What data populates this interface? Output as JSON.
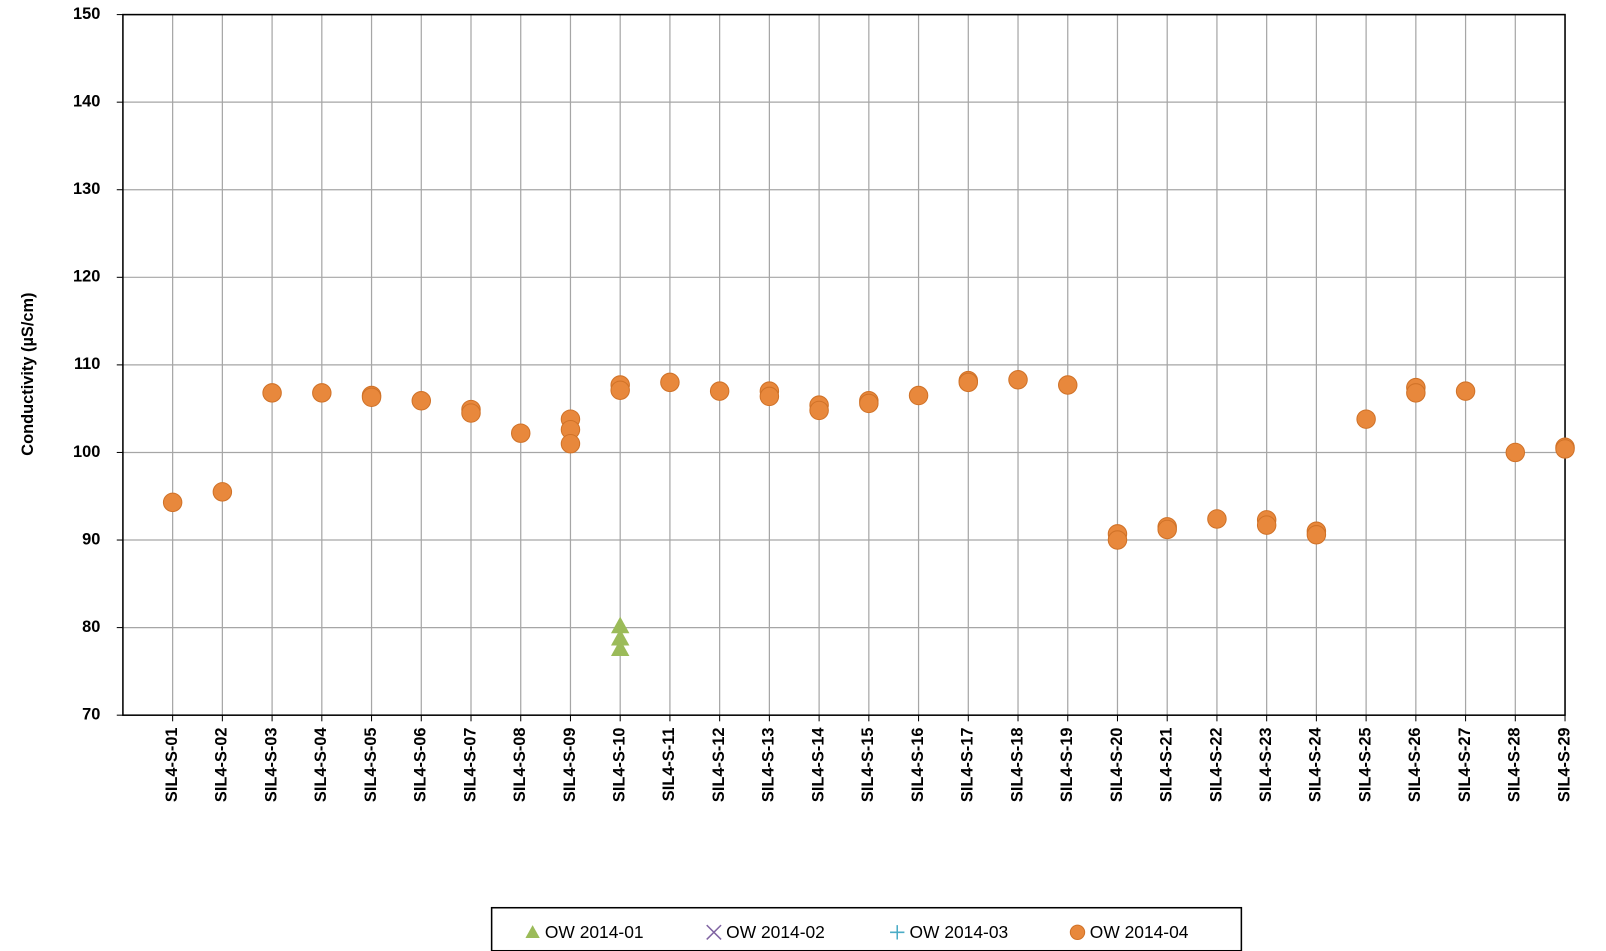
{
  "chart_data": {
    "type": "scatter",
    "y_label": "Conductivity (µS/cm)",
    "xlim": [
      0,
      29
    ],
    "ylim": [
      70,
      150
    ],
    "yticks": [
      70,
      80,
      90,
      100,
      110,
      120,
      130,
      140,
      150
    ],
    "xticks": [
      {
        "value": 1,
        "label": "SIL4-S-01"
      },
      {
        "value": 2,
        "label": "SIL4-S-02"
      },
      {
        "value": 3,
        "label": "SIL4-S-03"
      },
      {
        "value": 4,
        "label": "SIL4-S-04"
      },
      {
        "value": 5,
        "label": "SIL4-S-05"
      },
      {
        "value": 6,
        "label": "SIL4-S-06"
      },
      {
        "value": 7,
        "label": "SIL4-S-07"
      },
      {
        "value": 8,
        "label": "SIL4-S-08"
      },
      {
        "value": 9,
        "label": "SIL4-S-09"
      },
      {
        "value": 10,
        "label": "SIL4-S-10"
      },
      {
        "value": 11,
        "label": "SIL4-S-11"
      },
      {
        "value": 12,
        "label": "SIL4-S-12"
      },
      {
        "value": 13,
        "label": "SIL4-S-13"
      },
      {
        "value": 14,
        "label": "SIL4-S-14"
      },
      {
        "value": 15,
        "label": "SIL4-S-15"
      },
      {
        "value": 16,
        "label": "SIL4-S-16"
      },
      {
        "value": 17,
        "label": "SIL4-S-17"
      },
      {
        "value": 18,
        "label": "SIL4-S-18"
      },
      {
        "value": 19,
        "label": "SIL4-S-19"
      },
      {
        "value": 20,
        "label": "SIL4-S-20"
      },
      {
        "value": 21,
        "label": "SIL4-S-21"
      },
      {
        "value": 22,
        "label": "SIL4-S-22"
      },
      {
        "value": 23,
        "label": "SIL4-S-23"
      },
      {
        "value": 24,
        "label": "SIL4-S-24"
      },
      {
        "value": 25,
        "label": "SIL4-S-25"
      },
      {
        "value": 26,
        "label": "SIL4-S-26"
      },
      {
        "value": 27,
        "label": "SIL4-S-27"
      },
      {
        "value": 28,
        "label": "SIL4-S-28"
      },
      {
        "value": 29,
        "label": "SIL4-S-29"
      }
    ],
    "grid": true,
    "series": [
      {
        "name": "OW 2014-01",
        "color": "#9bbb59",
        "marker": "triangle",
        "x": [
          10,
          10,
          10
        ],
        "values": [
          80.2,
          78.8,
          77.6
        ]
      },
      {
        "name": "OW 2014-02",
        "color": "#8064a2",
        "marker": "x",
        "x": [],
        "values": []
      },
      {
        "name": "OW 2014-03",
        "color": "#4bacc6",
        "marker": "plus",
        "x": [],
        "values": []
      },
      {
        "name": "OW 2014-04",
        "color": "#e8883c",
        "marker": "circle",
        "x": [
          1,
          2,
          3,
          4,
          5,
          5,
          6,
          7,
          7,
          8,
          9,
          9,
          9,
          10,
          10,
          11,
          12,
          13,
          13,
          14,
          14,
          15,
          15,
          16,
          17,
          17,
          18,
          19,
          20,
          20,
          21,
          21,
          22,
          23,
          23,
          24,
          24,
          25,
          26,
          26,
          27,
          28,
          29,
          29
        ],
        "values": [
          94.3,
          95.5,
          106.8,
          106.8,
          106.5,
          106.3,
          105.9,
          104.9,
          104.5,
          102.2,
          103.8,
          102.6,
          101.0,
          107.7,
          107.1,
          108.0,
          107.0,
          107.0,
          106.4,
          105.4,
          104.8,
          105.9,
          105.6,
          106.5,
          108.2,
          108.0,
          108.3,
          107.7,
          90.7,
          90.0,
          91.5,
          91.2,
          92.4,
          92.3,
          91.7,
          91.0,
          90.6,
          103.8,
          107.4,
          106.8,
          107.0,
          100.0,
          100.6,
          100.4
        ]
      }
    ]
  }
}
